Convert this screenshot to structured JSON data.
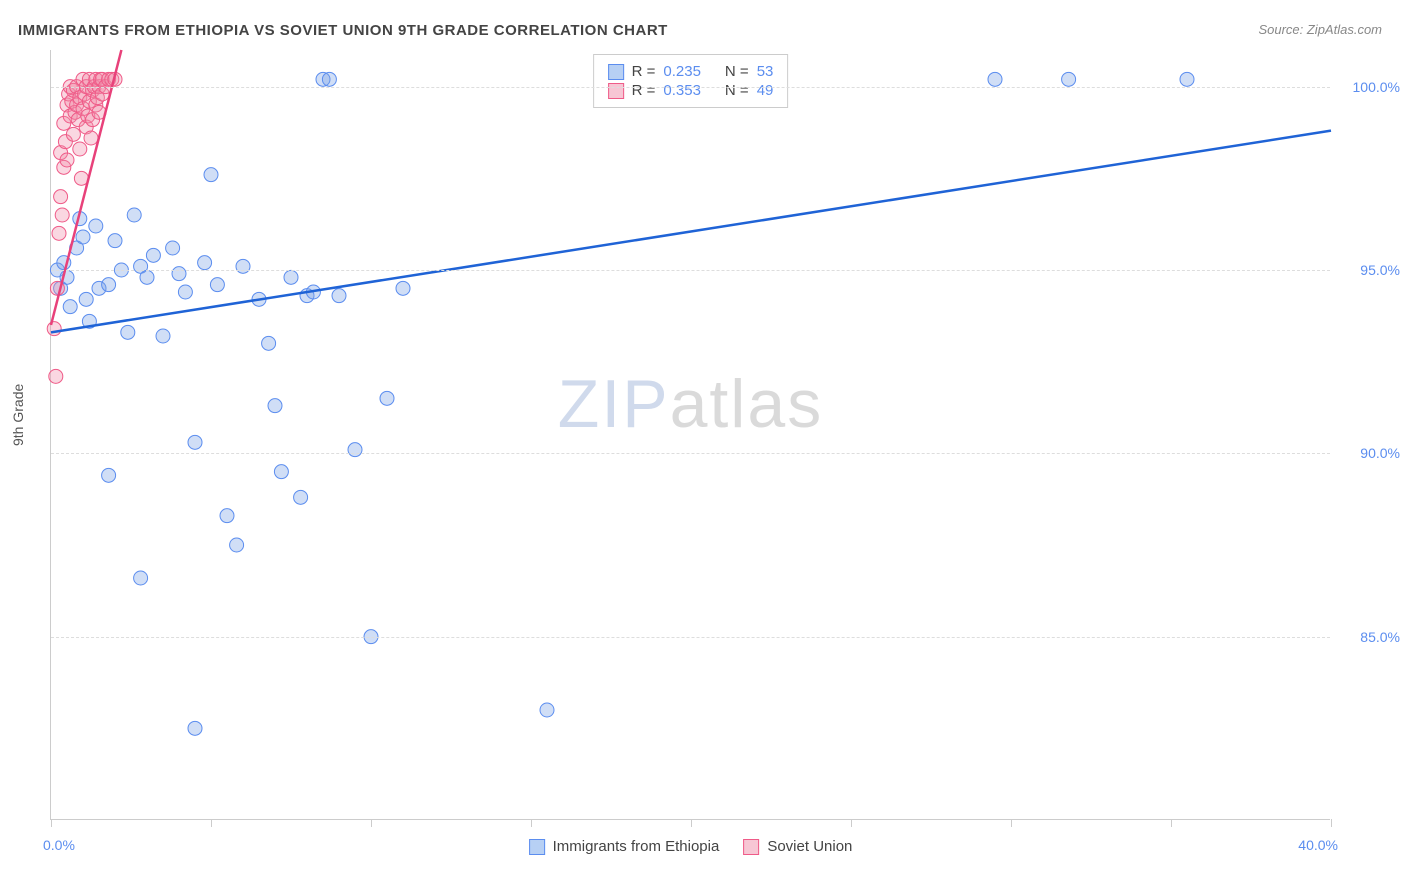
{
  "title": "IMMIGRANTS FROM ETHIOPIA VS SOVIET UNION 9TH GRADE CORRELATION CHART",
  "source": "Source: ZipAtlas.com",
  "watermark": {
    "part1": "ZIP",
    "part2": "atlas"
  },
  "axis": {
    "y_title": "9th Grade",
    "x_min_label": "0.0%",
    "x_max_label": "40.0%",
    "xlim": [
      0,
      40
    ],
    "ylim": [
      80,
      101
    ],
    "y_ticks": [
      {
        "val": 100,
        "label": "100.0%"
      },
      {
        "val": 95,
        "label": "95.0%"
      },
      {
        "val": 90,
        "label": "90.0%"
      },
      {
        "val": 85,
        "label": "85.0%"
      }
    ],
    "x_ticks": [
      0,
      5,
      10,
      15,
      20,
      25,
      30,
      35,
      40
    ]
  },
  "legend_top": {
    "rows": [
      {
        "swatch_fill": "#b7d0f4",
        "swatch_stroke": "#5b8def",
        "r_label": "R =",
        "r_val": "0.235",
        "n_label": "N =",
        "n_val": "53"
      },
      {
        "swatch_fill": "#f7c6d4",
        "swatch_stroke": "#ef5b88",
        "r_label": "R =",
        "r_val": "0.353",
        "n_label": "N =",
        "n_val": "49"
      }
    ]
  },
  "legend_bottom": {
    "items": [
      {
        "swatch_fill": "#b7d0f4",
        "swatch_stroke": "#5b8def",
        "label": "Immigrants from Ethiopia"
      },
      {
        "swatch_fill": "#f7c6d4",
        "swatch_stroke": "#ef5b88",
        "label": "Soviet Union"
      }
    ]
  },
  "series": {
    "ethiopia": {
      "color_fill": "rgba(120,160,230,0.35)",
      "color_stroke": "#5b8def",
      "marker_r": 7,
      "trend": {
        "x1": 0,
        "y1": 93.3,
        "x2": 40,
        "y2": 98.8,
        "stroke": "#1f63d6",
        "width": 2.5
      },
      "points": [
        [
          0.2,
          95
        ],
        [
          0.3,
          94.5
        ],
        [
          0.4,
          95.2
        ],
        [
          0.5,
          94.8
        ],
        [
          0.6,
          94
        ],
        [
          0.8,
          95.6
        ],
        [
          0.9,
          96.4
        ],
        [
          1.0,
          95.9
        ],
        [
          1.1,
          94.2
        ],
        [
          1.2,
          93.6
        ],
        [
          1.4,
          96.2
        ],
        [
          1.5,
          94.5
        ],
        [
          1.8,
          94.6
        ],
        [
          2.0,
          95.8
        ],
        [
          2.2,
          95
        ],
        [
          2.4,
          93.3
        ],
        [
          2.6,
          96.5
        ],
        [
          2.8,
          95.1
        ],
        [
          3.0,
          94.8
        ],
        [
          3.2,
          95.4
        ],
        [
          3.5,
          93.2
        ],
        [
          3.8,
          95.6
        ],
        [
          4.0,
          94.9
        ],
        [
          4.2,
          94.4
        ],
        [
          4.5,
          90.3
        ],
        [
          4.8,
          95.2
        ],
        [
          5.0,
          97.6
        ],
        [
          5.2,
          94.6
        ],
        [
          5.5,
          88.3
        ],
        [
          5.8,
          87.5
        ],
        [
          6.0,
          95.1
        ],
        [
          6.5,
          94.2
        ],
        [
          6.8,
          93
        ],
        [
          7.0,
          91.3
        ],
        [
          7.2,
          89.5
        ],
        [
          7.5,
          94.8
        ],
        [
          7.8,
          88.8
        ],
        [
          8.0,
          94.3
        ],
        [
          8.2,
          94.4
        ],
        [
          8.5,
          100.2
        ],
        [
          8.7,
          100.2
        ],
        [
          9.0,
          94.3
        ],
        [
          9.5,
          90.1
        ],
        [
          10.0,
          85.0
        ],
        [
          10.5,
          91.5
        ],
        [
          11.0,
          94.5
        ],
        [
          15.5,
          83.0
        ],
        [
          29.5,
          100.2
        ],
        [
          31.8,
          100.2
        ],
        [
          35.5,
          100.2
        ],
        [
          4.5,
          82.5
        ],
        [
          2.8,
          86.6
        ],
        [
          1.8,
          89.4
        ]
      ]
    },
    "soviet": {
      "color_fill": "rgba(240,140,170,0.35)",
      "color_stroke": "#ef5b88",
      "marker_r": 7,
      "trend": {
        "x1": 0,
        "y1": 93.5,
        "x2": 2.2,
        "y2": 101,
        "stroke": "#e8417a",
        "width": 2.5
      },
      "points": [
        [
          0.1,
          93.4
        ],
        [
          0.15,
          92.1
        ],
        [
          0.2,
          94.5
        ],
        [
          0.25,
          96
        ],
        [
          0.3,
          97
        ],
        [
          0.3,
          98.2
        ],
        [
          0.35,
          96.5
        ],
        [
          0.4,
          97.8
        ],
        [
          0.4,
          99
        ],
        [
          0.45,
          98.5
        ],
        [
          0.5,
          98
        ],
        [
          0.5,
          99.5
        ],
        [
          0.55,
          99.8
        ],
        [
          0.6,
          99.2
        ],
        [
          0.6,
          100
        ],
        [
          0.65,
          99.6
        ],
        [
          0.7,
          99.9
        ],
        [
          0.7,
          98.7
        ],
        [
          0.75,
          99.3
        ],
        [
          0.8,
          100
        ],
        [
          0.8,
          99.5
        ],
        [
          0.85,
          99.1
        ],
        [
          0.9,
          98.3
        ],
        [
          0.9,
          99.7
        ],
        [
          0.95,
          97.5
        ],
        [
          1.0,
          99.4
        ],
        [
          1.0,
          100.2
        ],
        [
          1.05,
          99.8
        ],
        [
          1.1,
          100
        ],
        [
          1.1,
          98.9
        ],
        [
          1.15,
          99.2
        ],
        [
          1.2,
          99.6
        ],
        [
          1.2,
          100.2
        ],
        [
          1.25,
          98.6
        ],
        [
          1.3,
          99.9
        ],
        [
          1.3,
          99.1
        ],
        [
          1.35,
          100
        ],
        [
          1.4,
          99.5
        ],
        [
          1.4,
          100.2
        ],
        [
          1.45,
          99.7
        ],
        [
          1.5,
          100
        ],
        [
          1.5,
          99.3
        ],
        [
          1.55,
          100.2
        ],
        [
          1.6,
          99.8
        ],
        [
          1.6,
          100.2
        ],
        [
          1.7,
          100
        ],
        [
          1.8,
          100.2
        ],
        [
          1.9,
          100.2
        ],
        [
          2.0,
          100.2
        ]
      ]
    }
  }
}
